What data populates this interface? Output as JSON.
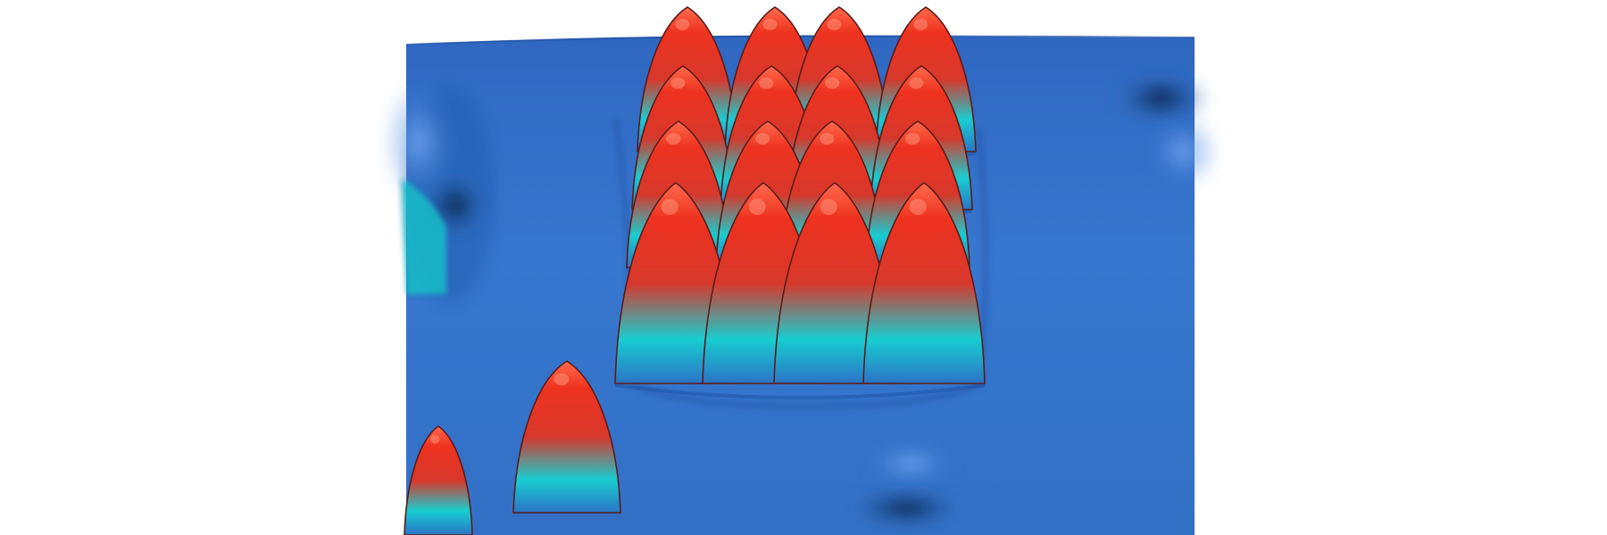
{
  "image": {
    "subject": "3d-surface-rendering",
    "background_color": "#ffffff",
    "surface_color": "#3a72c8",
    "peak_top_color": "#e8301c",
    "peak_base_color": "#1fd7d6",
    "grid_peaks": {
      "rows": 4,
      "columns": 4
    },
    "isolated_peaks": 2
  }
}
